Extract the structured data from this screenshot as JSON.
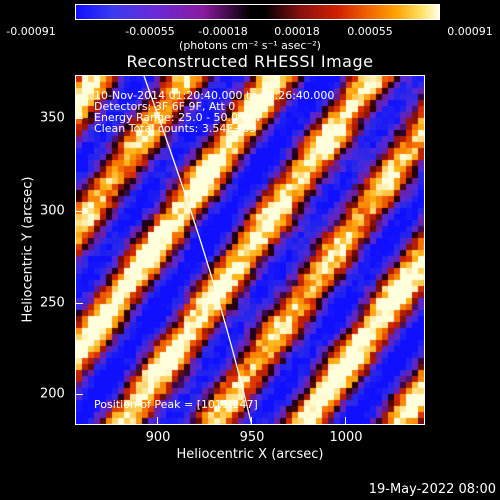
{
  "colorbar": {
    "ticks": [
      "-0.00091",
      "-0.00055",
      "-0.00018",
      "0.00018",
      "0.00055",
      "0.00091"
    ],
    "units": "(photons cm⁻² s⁻¹ asec⁻²)",
    "colors": [
      "#1010ff",
      "#6a2ad8",
      "#000000",
      "#d02000",
      "#ffa000",
      "#ffffe8"
    ]
  },
  "chart_data": {
    "type": "heatmap",
    "title": "Reconstructed RHESSI Image",
    "xlabel": "Heliocentric X (arcsec)",
    "ylabel": "Heliocentric Y (arcsec)",
    "xlim": [
      862,
      1042
    ],
    "ylim": [
      182,
      375
    ],
    "xticks": [
      "900",
      "950",
      "1000"
    ],
    "yticks": [
      "200",
      "250",
      "300",
      "350"
    ],
    "colorbar_range": [
      -0.00091,
      0.00091
    ],
    "pattern": "diagonal stripes alternating positive (red-yellow) and negative (blue-purple) flux, running from upper-left to lower-right",
    "peak": [
      1011,
      247
    ],
    "limb_curve": "white solar limb arc from top near x=900 to bottom near x=950"
  },
  "annotations": {
    "time_range": "10-Nov-2014 01:20:40.000 to 01:26:40.000",
    "detectors": "Detectors: 3F 6F 9F, Att 0",
    "energy": "Energy Range: 25.0 - 50.0 keV",
    "clean": "Clean    Total counts: 3.54E+03",
    "peak": "Position of Peak = [1011,247]"
  },
  "footer": {
    "timestamp": "19-May-2022 08:00"
  }
}
